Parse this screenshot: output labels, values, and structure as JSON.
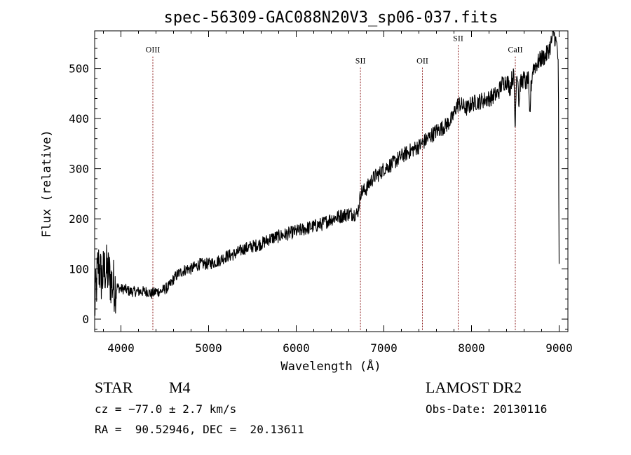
{
  "colors": {
    "spectrum": "#000000",
    "line_marker": "#8b1a1a",
    "axes": "#000000"
  },
  "chart_data": {
    "type": "line",
    "title": "spec-56309-GAC088N20V3_sp06-037.fits",
    "xlabel": "Wavelength (Å)",
    "ylabel": "Flux (relative)",
    "xlim": [
      3700,
      9100
    ],
    "ylim": [
      -25,
      575
    ],
    "xticks": [
      4000,
      5000,
      6000,
      7000,
      8000,
      9000
    ],
    "yticks": [
      0,
      100,
      200,
      300,
      400,
      500
    ],
    "grid": false,
    "anchors": {
      "x": [
        3700,
        3740,
        3780,
        3820,
        3860,
        3900,
        3950,
        4000,
        4050,
        4100,
        4150,
        4200,
        4250,
        4300,
        4350,
        4400,
        4450,
        4500,
        4550,
        4600,
        4650,
        4700,
        4750,
        4800,
        4850,
        4900,
        4950,
        5000,
        5100,
        5200,
        5300,
        5400,
        5500,
        5600,
        5700,
        5800,
        5900,
        6000,
        6100,
        6200,
        6300,
        6400,
        6500,
        6600,
        6700,
        6740,
        6760,
        6800,
        6850,
        6900,
        6950,
        7000,
        7100,
        7200,
        7300,
        7400,
        7500,
        7600,
        7700,
        7780,
        7800,
        7830,
        7860,
        7900,
        7950,
        8000,
        8100,
        8200,
        8300,
        8350,
        8400,
        8420,
        8440,
        8460,
        8480,
        8500,
        8520,
        8540,
        8560,
        8580,
        8600,
        8620,
        8650,
        8662,
        8670,
        8680,
        8700,
        8750,
        8800,
        8850,
        8900,
        8920,
        8940,
        8960,
        8980,
        9000
      ],
      "y": [
        20,
        110,
        80,
        100,
        90,
        70,
        65,
        60,
        60,
        55,
        55,
        55,
        55,
        55,
        50,
        55,
        55,
        60,
        65,
        80,
        90,
        95,
        100,
        100,
        105,
        110,
        110,
        110,
        115,
        125,
        130,
        140,
        145,
        150,
        160,
        165,
        170,
        175,
        180,
        185,
        190,
        200,
        205,
        210,
        210,
        255,
        255,
        260,
        275,
        285,
        290,
        300,
        310,
        325,
        335,
        345,
        360,
        375,
        385,
        400,
        410,
        425,
        430,
        425,
        420,
        430,
        435,
        440,
        450,
        470,
        475,
        470,
        460,
        480,
        485,
        470,
        490,
        480,
        470,
        475,
        480,
        470,
        480,
        480,
        440,
        465,
        500,
        510,
        520,
        525,
        545,
        560,
        570,
        555,
        540,
        480
      ]
    },
    "noise": {
      "level": 14,
      "high_noise_below": 3950,
      "high_noise_level": 55,
      "points": 1400
    },
    "absorption_dips": [
      {
        "x": 8498,
        "depth": 90
      },
      {
        "x": 8542,
        "depth": 55
      },
      {
        "x": 8662,
        "depth": 70
      },
      {
        "x": 9000,
        "depth": 380
      }
    ],
    "line_markers": [
      {
        "label": "OIII",
        "x": 4364,
        "label_y": 532
      },
      {
        "label": "SII",
        "x": 6733,
        "label_y": 510
      },
      {
        "label": "OII",
        "x": 7440,
        "label_y": 510
      },
      {
        "label": "SII",
        "x": 7848,
        "label_y": 555
      },
      {
        "label": "CaII",
        "x": 8500,
        "label_y": 532
      }
    ]
  },
  "info": {
    "class": "STAR",
    "subclass": "M4",
    "survey": "LAMOST DR2",
    "cz": "cz = −77.0 ± 2.7 km/s",
    "obs_date": "Obs-Date: 20130116",
    "radec": "RA =  90.52946, DEC =  20.13611"
  }
}
